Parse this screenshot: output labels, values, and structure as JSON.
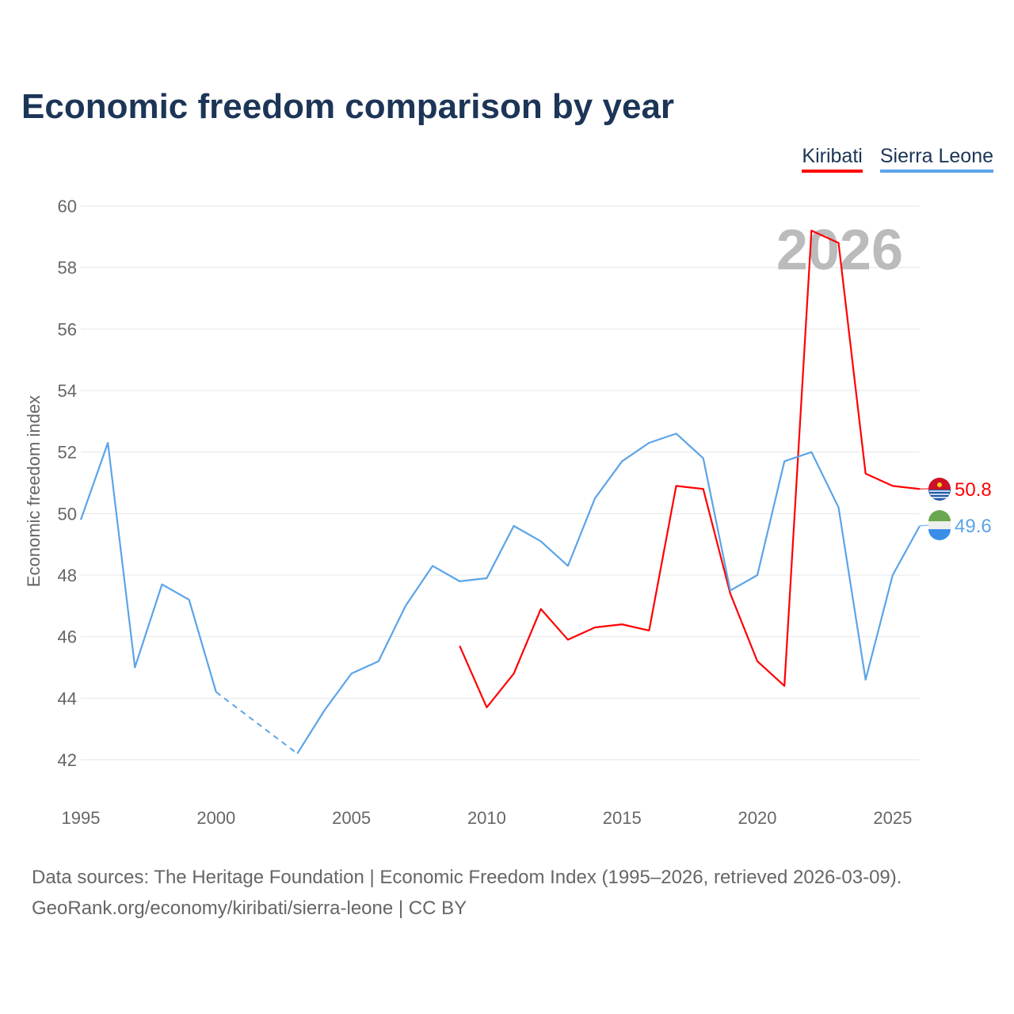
{
  "title": "Economic freedom comparison by year",
  "source_line1": "Data sources: The Heritage Foundation | Economic Freedom Index (1995–2026, retrieved 2026-03-09).",
  "source_line2": "GeoRank.org/economy/kiribati/sierra-leone | CC BY",
  "chart_data": {
    "type": "line",
    "title": "Economic freedom comparison by year",
    "xlabel": "",
    "ylabel": "Economic freedom index",
    "xlim": [
      1995,
      2026
    ],
    "ylim": [
      41,
      60
    ],
    "x_ticks": [
      1995,
      2000,
      2005,
      2010,
      2015,
      2020,
      2025
    ],
    "y_ticks": [
      42,
      44,
      46,
      48,
      50,
      52,
      54,
      56,
      58,
      60
    ],
    "grid": true,
    "legend_position": "top-right",
    "watermark_year": "2026",
    "series": [
      {
        "name": "Kiribati",
        "color": "#ff0000",
        "end_label": "50.8",
        "x": [
          2009,
          2010,
          2011,
          2012,
          2013,
          2014,
          2015,
          2016,
          2017,
          2018,
          2019,
          2020,
          2021,
          2022,
          2023,
          2024,
          2025,
          2026
        ],
        "values": [
          45.7,
          43.7,
          44.8,
          46.9,
          45.9,
          46.3,
          46.4,
          46.2,
          50.9,
          50.8,
          47.4,
          45.2,
          44.4,
          59.2,
          58.8,
          51.3,
          50.9,
          50.8
        ]
      },
      {
        "name": "Sierra Leone",
        "color": "#5ba4e8",
        "end_label": "49.6",
        "x": [
          1995,
          1996,
          1997,
          1998,
          1999,
          2000,
          2003,
          2004,
          2005,
          2006,
          2007,
          2008,
          2009,
          2010,
          2011,
          2012,
          2013,
          2014,
          2015,
          2016,
          2017,
          2018,
          2019,
          2020,
          2021,
          2022,
          2023,
          2024,
          2025,
          2026
        ],
        "values": [
          49.8,
          52.3,
          45.0,
          47.7,
          47.2,
          44.2,
          42.2,
          43.6,
          44.8,
          45.2,
          47.0,
          48.3,
          47.8,
          47.9,
          49.6,
          49.1,
          48.3,
          50.5,
          51.7,
          52.3,
          52.6,
          51.8,
          47.5,
          48.0,
          51.7,
          52.0,
          50.2,
          44.6,
          48.0,
          49.6
        ],
        "gaps": [
          [
            2000,
            2003
          ]
        ]
      }
    ]
  }
}
